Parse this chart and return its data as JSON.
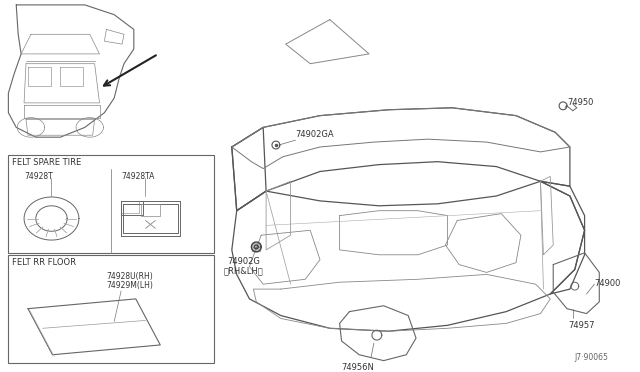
{
  "bg_color": "#ffffff",
  "line_color": "#555555",
  "diagram_id": "J7·90065",
  "parts": {
    "main_carpet": "74900",
    "clip_rhlh": "74902G\n（RH&LH）",
    "clip_ga": "74902GA",
    "rear_trim": "74950",
    "part_74950": "74950",
    "felt_spare_t": "74928T",
    "felt_spare_ta": "74928TA",
    "felt_rr_rh": "74928U(RH)",
    "felt_rr_lh": "74929M(LH)",
    "part_74956n": "74956N",
    "part_74957": "74957",
    "label_felt_spare": "FELT SPARE TIRE",
    "label_felt_rr": "FELT RR FLOOR"
  }
}
